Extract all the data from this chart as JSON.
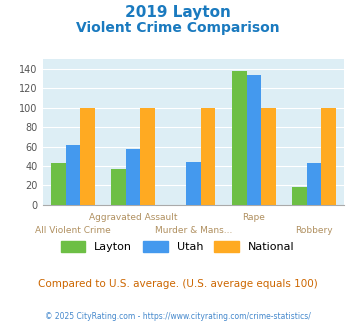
{
  "title_line1": "2019 Layton",
  "title_line2": "Violent Crime Comparison",
  "series": {
    "Layton": [
      43,
      37,
      0,
      138,
      18
    ],
    "Utah": [
      62,
      57,
      44,
      134,
      43
    ],
    "National": [
      100,
      100,
      100,
      100,
      100
    ]
  },
  "colors": {
    "Layton": "#6dbf45",
    "Utah": "#4499ee",
    "National": "#ffaa22"
  },
  "ylim": [
    0,
    150
  ],
  "yticks": [
    0,
    20,
    40,
    60,
    80,
    100,
    120,
    140
  ],
  "bg_color": "#ddeef5",
  "title_color": "#1a7abf",
  "xlabel_top": [
    "",
    "Aggravated Assault",
    "",
    "Rape",
    ""
  ],
  "xlabel_bot": [
    "All Violent Crime",
    "",
    "Murder & Mans...",
    "",
    "Robbery"
  ],
  "xlabel_color": "#b09060",
  "note_text": "Compared to U.S. average. (U.S. average equals 100)",
  "note_color": "#cc6600",
  "footer_left": "© 2025 CityRating.com - ",
  "footer_right": "https://www.cityrating.com/crime-statistics/",
  "footer_color_left": "#888888",
  "footer_color_right": "#4488cc"
}
